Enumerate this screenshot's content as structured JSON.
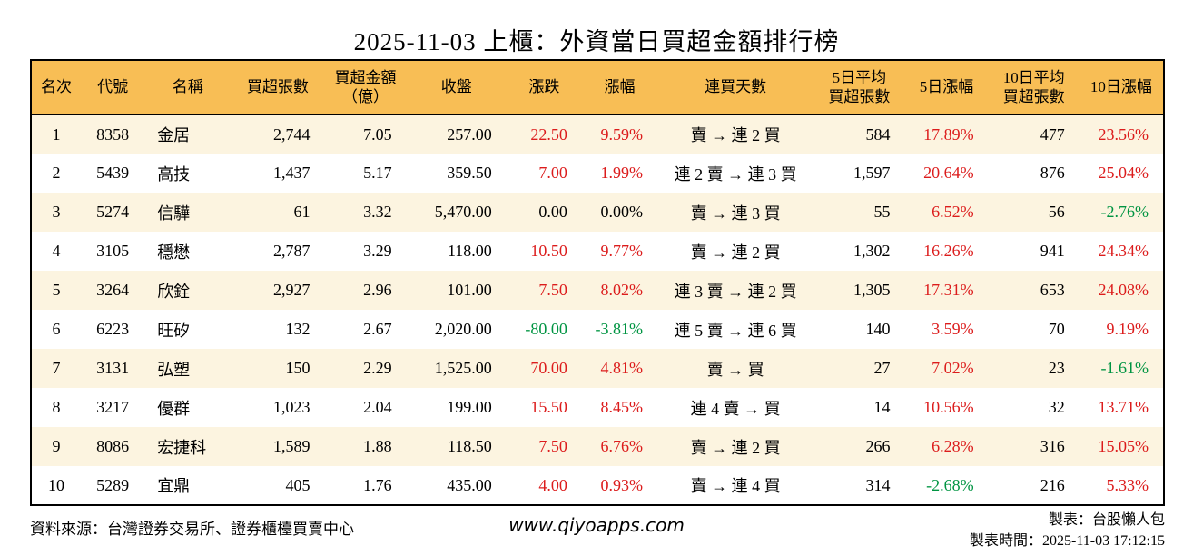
{
  "chart_data": {
    "type": "table",
    "title": "2025-11-03 上櫃：外資當日買超金額排行榜",
    "columns": [
      "名次",
      "代號",
      "名稱",
      "買超張數",
      "買超金額\n（億）",
      "收盤",
      "漲跌",
      "漲幅",
      "連買天數",
      "5日平均\n買超張數",
      "5日漲幅",
      "10日平均\n買超張數",
      "10日漲幅"
    ],
    "rows": [
      {
        "rank": "1",
        "code": "8358",
        "name": "金居",
        "shares": "2,744",
        "amount": "7.05",
        "close": "257.00",
        "change": "22.50",
        "change_pct": "9.59%",
        "streak": "賣 → 連 2 買",
        "avg5": "584",
        "pct5": "17.89%",
        "avg10": "477",
        "pct10": "23.56%"
      },
      {
        "rank": "2",
        "code": "5439",
        "name": "高技",
        "shares": "1,437",
        "amount": "5.17",
        "close": "359.50",
        "change": "7.00",
        "change_pct": "1.99%",
        "streak": "連 2 賣 → 連 3 買",
        "avg5": "1,597",
        "pct5": "20.64%",
        "avg10": "876",
        "pct10": "25.04%"
      },
      {
        "rank": "3",
        "code": "5274",
        "name": "信驊",
        "shares": "61",
        "amount": "3.32",
        "close": "5,470.00",
        "change": "0.00",
        "change_pct": "0.00%",
        "streak": "賣 → 連 3 買",
        "avg5": "55",
        "pct5": "6.52%",
        "avg10": "56",
        "pct10": "-2.76%"
      },
      {
        "rank": "4",
        "code": "3105",
        "name": "穩懋",
        "shares": "2,787",
        "amount": "3.29",
        "close": "118.00",
        "change": "10.50",
        "change_pct": "9.77%",
        "streak": "賣 → 連 2 買",
        "avg5": "1,302",
        "pct5": "16.26%",
        "avg10": "941",
        "pct10": "24.34%"
      },
      {
        "rank": "5",
        "code": "3264",
        "name": "欣銓",
        "shares": "2,927",
        "amount": "2.96",
        "close": "101.00",
        "change": "7.50",
        "change_pct": "8.02%",
        "streak": "連 3 賣 → 連 2 買",
        "avg5": "1,305",
        "pct5": "17.31%",
        "avg10": "653",
        "pct10": "24.08%"
      },
      {
        "rank": "6",
        "code": "6223",
        "name": "旺矽",
        "shares": "132",
        "amount": "2.67",
        "close": "2,020.00",
        "change": "-80.00",
        "change_pct": "-3.81%",
        "streak": "連 5 賣 → 連 6 買",
        "avg5": "140",
        "pct5": "3.59%",
        "avg10": "70",
        "pct10": "9.19%"
      },
      {
        "rank": "7",
        "code": "3131",
        "name": "弘塑",
        "shares": "150",
        "amount": "2.29",
        "close": "1,525.00",
        "change": "70.00",
        "change_pct": "4.81%",
        "streak": "賣 → 買",
        "avg5": "27",
        "pct5": "7.02%",
        "avg10": "23",
        "pct10": "-1.61%"
      },
      {
        "rank": "8",
        "code": "3217",
        "name": "優群",
        "shares": "1,023",
        "amount": "2.04",
        "close": "199.00",
        "change": "15.50",
        "change_pct": "8.45%",
        "streak": "連 4 賣 → 買",
        "avg5": "14",
        "pct5": "10.56%",
        "avg10": "32",
        "pct10": "13.71%"
      },
      {
        "rank": "9",
        "code": "8086",
        "name": "宏捷科",
        "shares": "1,589",
        "amount": "1.88",
        "close": "118.50",
        "change": "7.50",
        "change_pct": "6.76%",
        "streak": "賣 → 連 2 買",
        "avg5": "266",
        "pct5": "6.28%",
        "avg10": "316",
        "pct10": "15.05%"
      },
      {
        "rank": "10",
        "code": "5289",
        "name": "宜鼎",
        "shares": "405",
        "amount": "1.76",
        "close": "435.00",
        "change": "4.00",
        "change_pct": "0.93%",
        "streak": "賣 → 連 4 買",
        "avg5": "314",
        "pct5": "-2.68%",
        "avg10": "216",
        "pct10": "5.33%"
      }
    ]
  },
  "colors": {
    "header_bg": "#F8BE55",
    "row_odd": "#FCF4E0",
    "row_even": "#FFFFFF",
    "up": "#DC1C1C",
    "down": "#009442",
    "flat": "#000000",
    "border": "#000000"
  },
  "footer": {
    "source": "資料來源：台灣證券交易所、證券櫃檯買賣中心",
    "website": "www.qiyoapps.com",
    "made_by": "製表：台股懶人包",
    "made_time": "製表時間：2025-11-03 17:12:15"
  }
}
